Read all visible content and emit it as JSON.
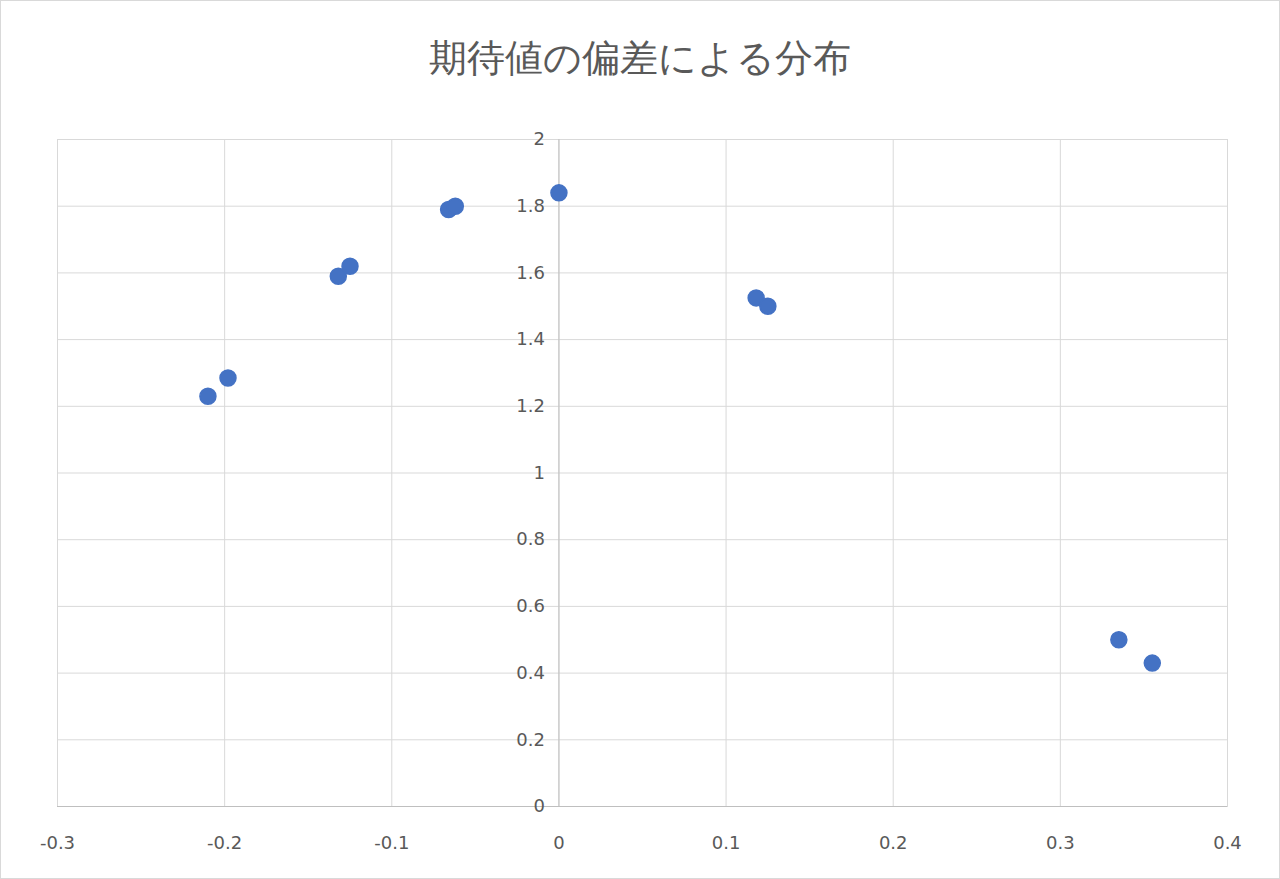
{
  "chart_data": {
    "type": "scatter",
    "title": "期待値の偏差による分布",
    "x": [
      -0.21,
      -0.198,
      -0.132,
      -0.125,
      -0.066,
      -0.062,
      0,
      0.118,
      0.125,
      0.335,
      0.355
    ],
    "values": [
      1.23,
      1.285,
      1.59,
      1.62,
      1.79,
      1.8,
      1.84,
      1.525,
      1.5,
      0.5,
      0.43
    ],
    "color": "#4472c4",
    "marker": "circle",
    "xlim": [
      -0.3,
      0.4
    ],
    "xticks": [
      -0.3,
      -0.2,
      -0.1,
      0,
      0.1,
      0.2,
      0.3,
      0.4
    ],
    "ylim": [
      0,
      2
    ],
    "yticks": [
      0,
      0.2,
      0.4,
      0.6,
      0.8,
      1,
      1.2,
      1.4,
      1.6,
      1.8,
      2
    ],
    "grid": true
  }
}
